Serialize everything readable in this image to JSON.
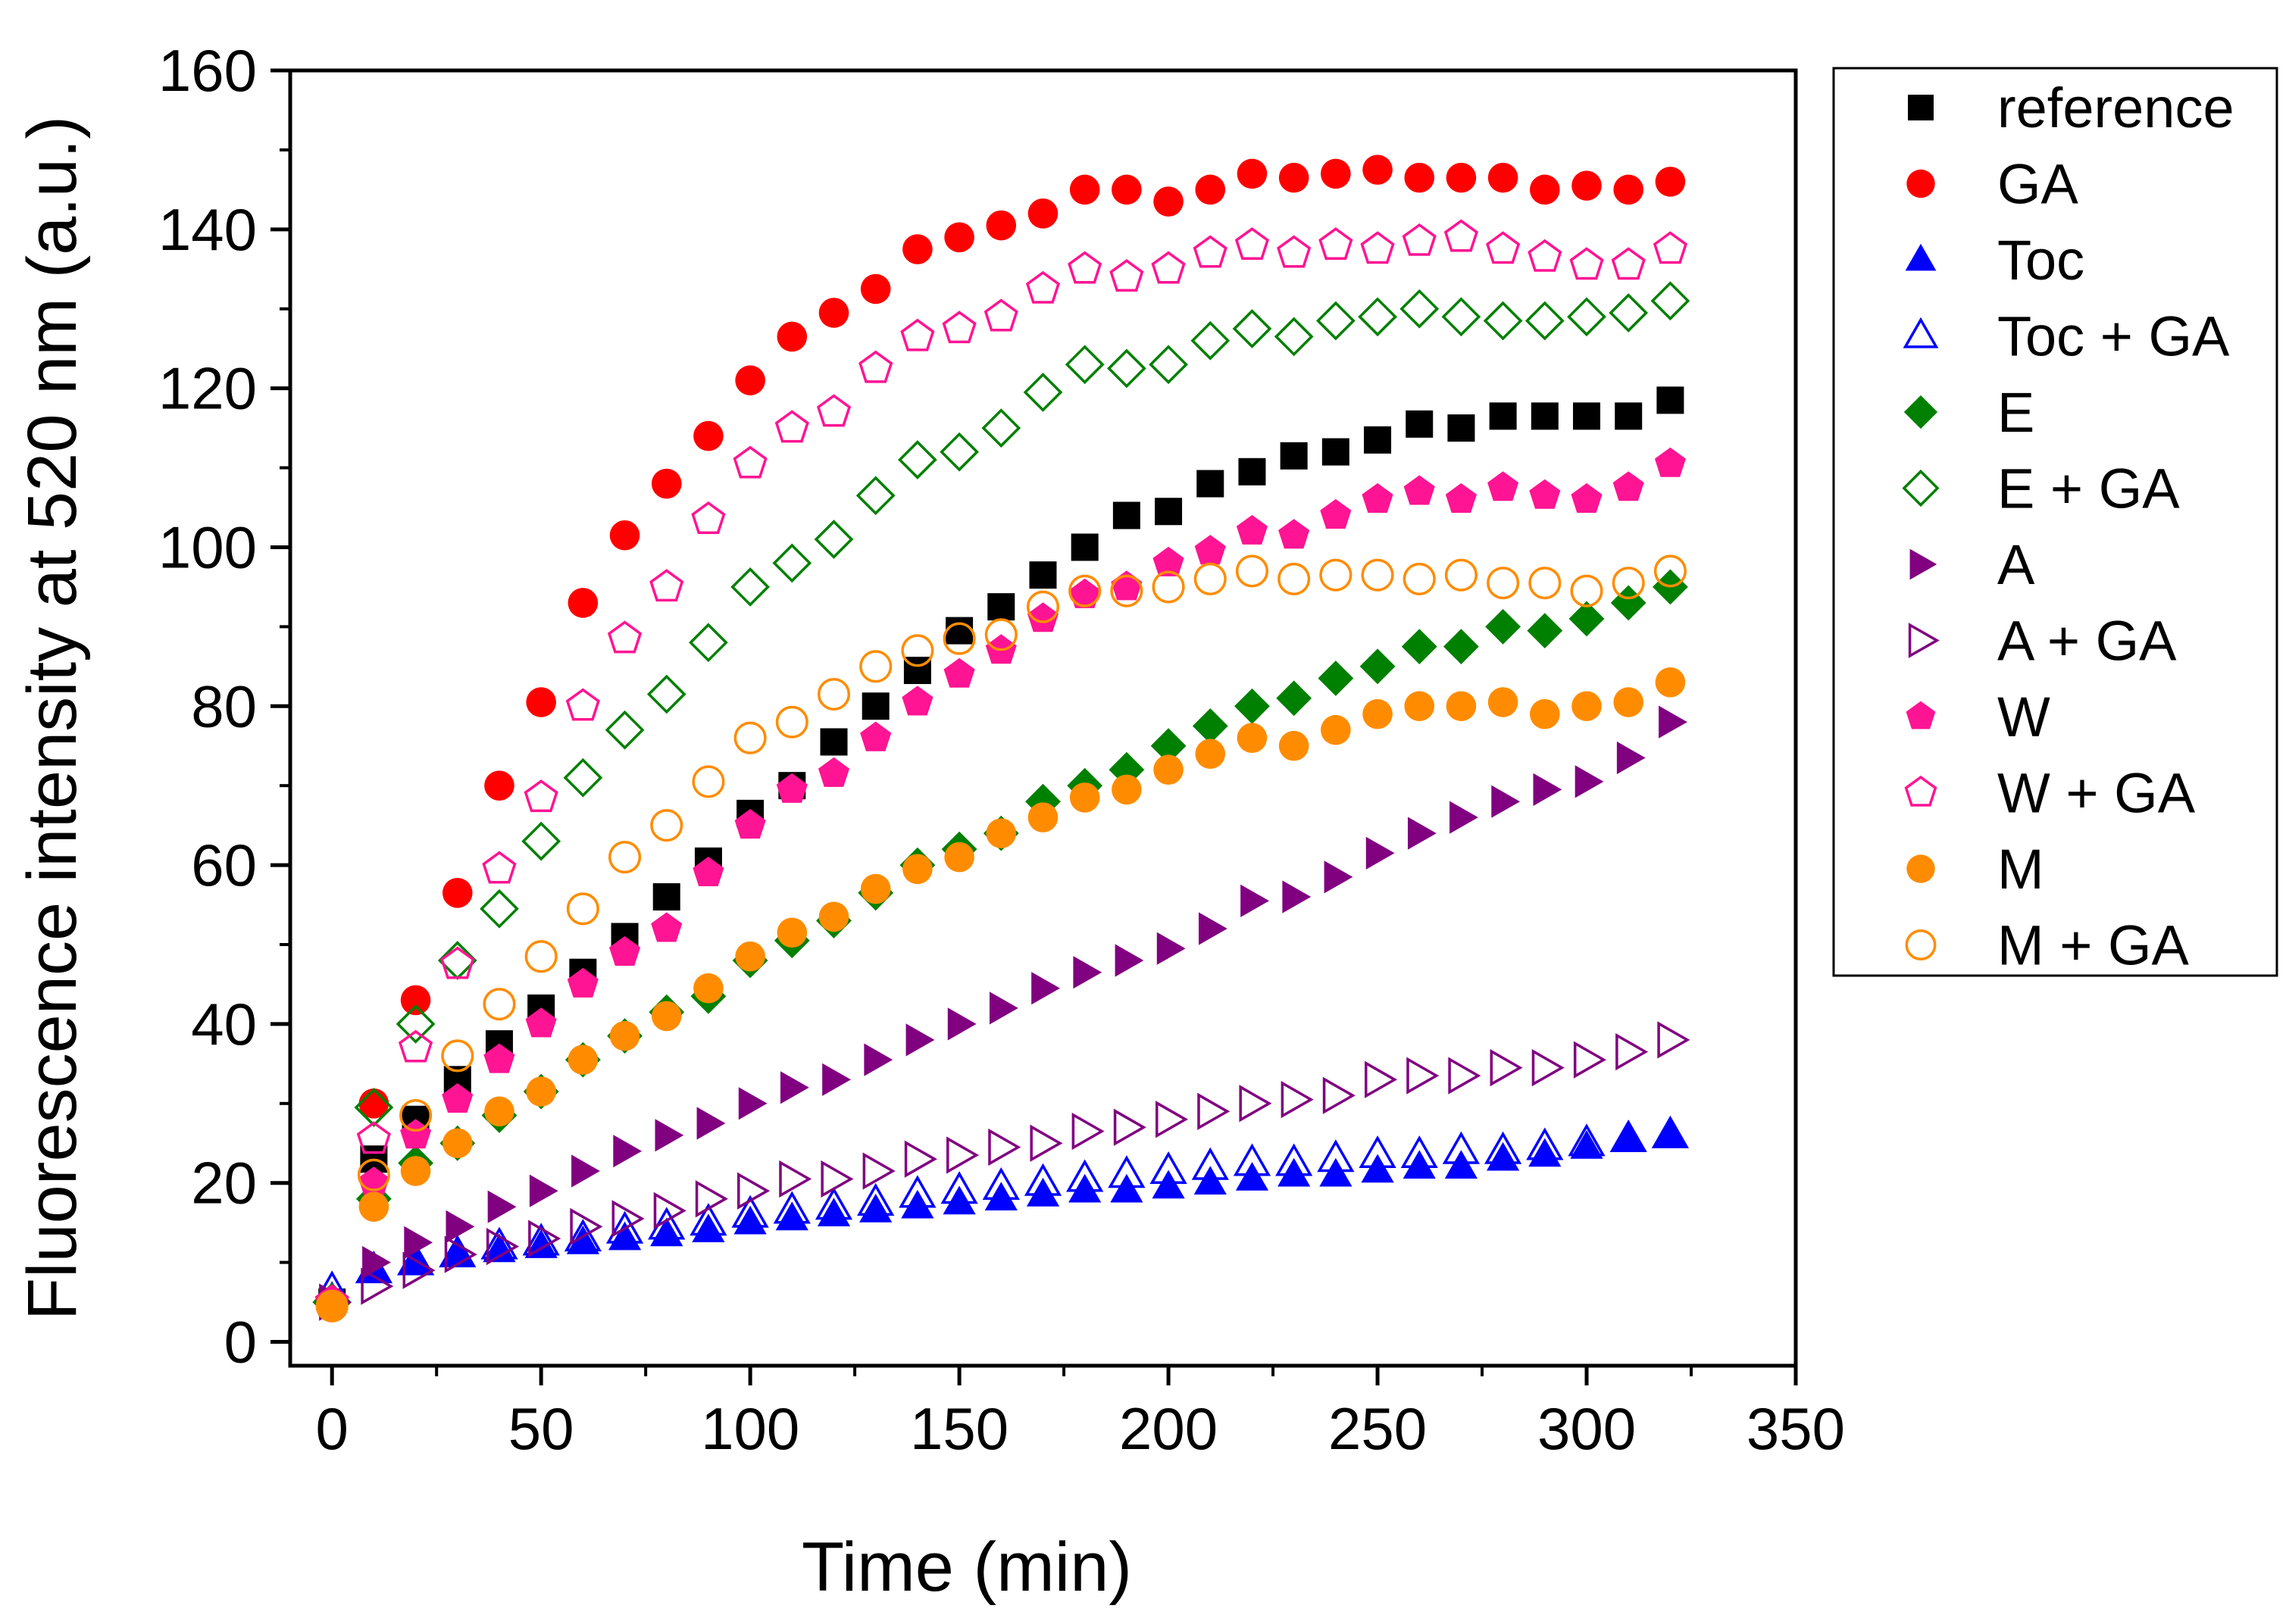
{
  "chart_data": {
    "type": "scatter",
    "title": "",
    "xlabel": "Time (min)",
    "ylabel": "Fluorescence intensity at 520 nm (a.u.)",
    "xlim": [
      -10,
      350
    ],
    "ylim": [
      -3,
      160
    ],
    "xticks": [
      0,
      50,
      100,
      150,
      200,
      250,
      300,
      350
    ],
    "yticks": [
      0,
      20,
      40,
      60,
      80,
      100,
      120,
      140,
      160
    ],
    "xticklabels": [
      "0",
      "50",
      "100",
      "150",
      "200",
      "250",
      "300",
      "350"
    ],
    "yticklabels": [
      "0",
      "20",
      "40",
      "60",
      "80",
      "100",
      "120",
      "140",
      "160"
    ],
    "grid": false,
    "legend_position": "right",
    "x": [
      0,
      10,
      20,
      30,
      40,
      50,
      60,
      70,
      80,
      90,
      100,
      110,
      120,
      130,
      140,
      150,
      160,
      170,
      180,
      190,
      200,
      210,
      220,
      230,
      240,
      250,
      260,
      270,
      280,
      290,
      300,
      310,
      320
    ],
    "series": [
      {
        "name": "reference",
        "marker": "square",
        "filled": true,
        "color": "#000000",
        "values": [
          5,
          23,
          28,
          33,
          37.5,
          42,
          46.5,
          51,
          56,
          60.5,
          66.5,
          70,
          75.5,
          80,
          84.5,
          89.5,
          92.5,
          96.5,
          100,
          104,
          104.5,
          108,
          109.5,
          111.5,
          112,
          113.5,
          115.5,
          115,
          116.5,
          116.5,
          116.5,
          116.5,
          118.5
        ]
      },
      {
        "name": "GA",
        "marker": "circle",
        "filled": true,
        "color": "#ff0000",
        "values": [
          5,
          30,
          43,
          56.5,
          70,
          80.5,
          93,
          101.5,
          108,
          114,
          121,
          126.5,
          129.5,
          132.5,
          137.5,
          139,
          140.5,
          142,
          145,
          145,
          143.5,
          145,
          147,
          146.5,
          147,
          147.5,
          146.5,
          146.5,
          146.5,
          145,
          145.5,
          145,
          146
        ]
      },
      {
        "name": "Toc",
        "marker": "triangle-up",
        "filled": true,
        "color": "#0000ff",
        "values": [
          5.5,
          9,
          10,
          11,
          11.5,
          12,
          12.5,
          13,
          13.5,
          14,
          15,
          15.5,
          16,
          16.5,
          17,
          17.5,
          18,
          18.5,
          19,
          19,
          19.5,
          20,
          20.5,
          21,
          21,
          21.5,
          22,
          22,
          23,
          23.5,
          24.5,
          25.5,
          26
        ]
      },
      {
        "name": "Toc + GA",
        "marker": "triangle-up",
        "filled": false,
        "color": "#0000ff",
        "values": [
          6.5,
          9,
          10,
          11,
          12,
          12.5,
          13,
          14,
          14.5,
          15,
          16,
          16.5,
          17,
          17.5,
          18.5,
          19,
          19.5,
          20,
          20.5,
          21,
          21.5,
          22,
          22.5,
          22.5,
          23,
          23.5,
          23.5,
          24,
          24,
          24.5,
          25,
          25.5,
          26
        ]
      },
      {
        "name": "E",
        "marker": "diamond",
        "filled": true,
        "color": "#008000",
        "values": [
          5,
          18,
          22.5,
          25,
          28.5,
          31.5,
          35.5,
          38.5,
          41.5,
          43.5,
          48,
          50.5,
          53,
          56.5,
          60,
          62,
          64,
          68,
          70,
          72,
          75,
          77.5,
          80,
          81,
          83.5,
          85,
          87.5,
          87.5,
          90,
          89.5,
          91,
          93,
          95
        ]
      },
      {
        "name": "E + GA",
        "marker": "diamond",
        "filled": false,
        "color": "#008000",
        "values": [
          5,
          29.5,
          40,
          48,
          54.5,
          63,
          71,
          77,
          81.5,
          88,
          95,
          98,
          101,
          106.5,
          111,
          112,
          115,
          119.5,
          123,
          122.5,
          123,
          126,
          127.5,
          126.5,
          128.5,
          129,
          130,
          129,
          128.5,
          128.5,
          129,
          129.5,
          131
        ]
      },
      {
        "name": "A",
        "marker": "triangle-right",
        "filled": true,
        "color": "#800080",
        "values": [
          5,
          10,
          12.5,
          14.5,
          17,
          19,
          21.5,
          24,
          26,
          27.5,
          30,
          32,
          33,
          35.5,
          38,
          40,
          42,
          44.5,
          46.5,
          48,
          49.5,
          52,
          55.5,
          56,
          58.5,
          61.5,
          64,
          66,
          68,
          69.5,
          70.5,
          73.5,
          78
        ]
      },
      {
        "name": "A + GA",
        "marker": "triangle-right",
        "filled": false,
        "color": "#800080",
        "values": [
          5,
          7,
          9,
          11,
          12,
          13,
          14.5,
          15.5,
          16.5,
          18,
          19,
          20.5,
          20.5,
          21.5,
          23,
          23.5,
          24.5,
          25,
          26.5,
          27,
          28,
          29,
          30,
          30.5,
          31,
          33,
          33.5,
          33.5,
          34.5,
          34.5,
          35.5,
          36.5,
          38
        ]
      },
      {
        "name": "W",
        "marker": "pentagon",
        "filled": true,
        "color": "#ff1493",
        "values": [
          5,
          20,
          26,
          30.5,
          35.5,
          40,
          45,
          49,
          52,
          59,
          65,
          69.5,
          71.5,
          76,
          80.5,
          84,
          87,
          91,
          94,
          95,
          98,
          99.5,
          102,
          101.5,
          104,
          106,
          107,
          106,
          107.5,
          106.5,
          106,
          107.5,
          110.5
        ]
      },
      {
        "name": "W + GA",
        "marker": "pentagon",
        "filled": false,
        "color": "#ff1493",
        "values": [
          5,
          25.5,
          37,
          47.5,
          59.5,
          68.5,
          80,
          88.5,
          95,
          103.5,
          110.5,
          115,
          117,
          122.5,
          126.5,
          127.5,
          129,
          132.5,
          135,
          134,
          135,
          137,
          138,
          137,
          138,
          137.5,
          138.5,
          139,
          137.5,
          136.5,
          135.5,
          135.5,
          137.5
        ]
      },
      {
        "name": "M",
        "marker": "circle",
        "filled": true,
        "color": "#ff8c00",
        "values": [
          4.5,
          17,
          21.5,
          25,
          29,
          31.5,
          35.5,
          38.5,
          41,
          44.5,
          48.5,
          51.5,
          53.5,
          57,
          59.5,
          61,
          64,
          66,
          68.5,
          69.5,
          72,
          74,
          76,
          75,
          77,
          79,
          80,
          80,
          80.5,
          79,
          80,
          80.5,
          83
        ]
      },
      {
        "name": "M + GA",
        "marker": "circle",
        "filled": false,
        "color": "#ff8c00",
        "values": [
          4.5,
          21,
          28.5,
          36,
          42.5,
          48.5,
          54.5,
          61,
          65,
          70.5,
          76,
          78,
          81.5,
          85,
          87,
          88.5,
          89,
          92.5,
          94.5,
          94.5,
          95,
          96,
          97,
          96,
          96.5,
          96.5,
          96,
          96.5,
          95.5,
          95.5,
          94.5,
          95.5,
          97
        ]
      }
    ]
  }
}
